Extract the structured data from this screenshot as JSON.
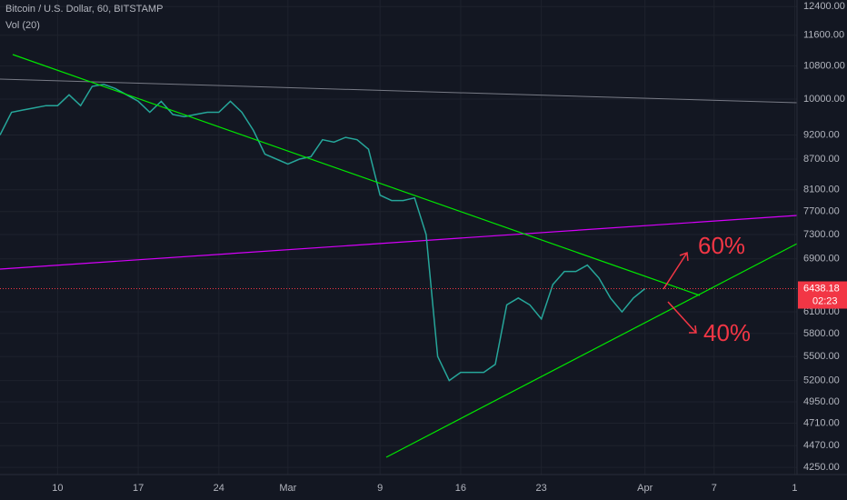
{
  "chart_data": {
    "type": "line",
    "title": "Bitcoin / U.S. Dollar, 60, BITSTAMP",
    "subtitle": "Vol (20)",
    "log_scale": true,
    "color": "#26a69a",
    "x": [
      4,
      5,
      6,
      7,
      8,
      9,
      10,
      11,
      12,
      13,
      14,
      15,
      16,
      17,
      18,
      19,
      20,
      21,
      22,
      23,
      24,
      25,
      26,
      27,
      28,
      29,
      30,
      31,
      32,
      33,
      34,
      35,
      36,
      37,
      38,
      39,
      40,
      41,
      42,
      43,
      44,
      45,
      46,
      47,
      48,
      49,
      50,
      51,
      52,
      53,
      54,
      55,
      56,
      57,
      58,
      59,
      60
    ],
    "values": [
      9200,
      9700,
      9750,
      9800,
      9850,
      9850,
      10100,
      9850,
      10300,
      10350,
      10250,
      10100,
      9950,
      9700,
      9950,
      9650,
      9600,
      9650,
      9700,
      9700,
      9950,
      9700,
      9300,
      8800,
      8700,
      8600,
      8700,
      8750,
      9100,
      9050,
      9150,
      9100,
      8900,
      8000,
      7900,
      7900,
      7950,
      7300,
      5500,
      5200,
      5300,
      5300,
      5300,
      5400,
      6200,
      6300,
      6200,
      6000,
      6500,
      6700,
      6700,
      6800,
      6600,
      6300,
      6100,
      6300,
      6438.18
    ],
    "xlim": [
      4,
      73.2
    ],
    "ylim": [
      4180,
      12590
    ],
    "xticks": [
      {
        "value": 9,
        "label": "10"
      },
      {
        "value": 16,
        "label": "17"
      },
      {
        "value": 23,
        "label": "24"
      },
      {
        "value": 29,
        "label": "Mar"
      },
      {
        "value": 37,
        "label": "9"
      },
      {
        "value": 44,
        "label": "16"
      },
      {
        "value": 51,
        "label": "23"
      },
      {
        "value": 60,
        "label": "Apr"
      },
      {
        "value": 66,
        "label": "7"
      },
      {
        "value": 73,
        "label": "1"
      }
    ],
    "yticks": [
      {
        "value": 12400,
        "label": "12400.00"
      },
      {
        "value": 11600,
        "label": "11600.00"
      },
      {
        "value": 10800,
        "label": "10800.00"
      },
      {
        "value": 10000,
        "label": "10000.00"
      },
      {
        "value": 9200,
        "label": "9200.00"
      },
      {
        "value": 8700,
        "label": "8700.00"
      },
      {
        "value": 8100,
        "label": "8100.00"
      },
      {
        "value": 7700,
        "label": "7700.00"
      },
      {
        "value": 7300,
        "label": "7300.00"
      },
      {
        "value": 6900,
        "label": "6900.00"
      },
      {
        "value": 6100,
        "label": "6100.00"
      },
      {
        "value": 5800,
        "label": "5800.00"
      },
      {
        "value": 5500,
        "label": "5500.00"
      },
      {
        "value": 5200,
        "label": "5200.00"
      },
      {
        "value": 4950,
        "label": "4950.00"
      },
      {
        "value": 4710,
        "label": "4710.00"
      },
      {
        "value": 4470,
        "label": "4470.00"
      },
      {
        "value": 4250,
        "label": "4250.00"
      }
    ],
    "last_price": {
      "value": 6438.18,
      "label": "6438.18"
    },
    "countdown": "02:23",
    "annotations": [
      "60%",
      "40%"
    ]
  }
}
